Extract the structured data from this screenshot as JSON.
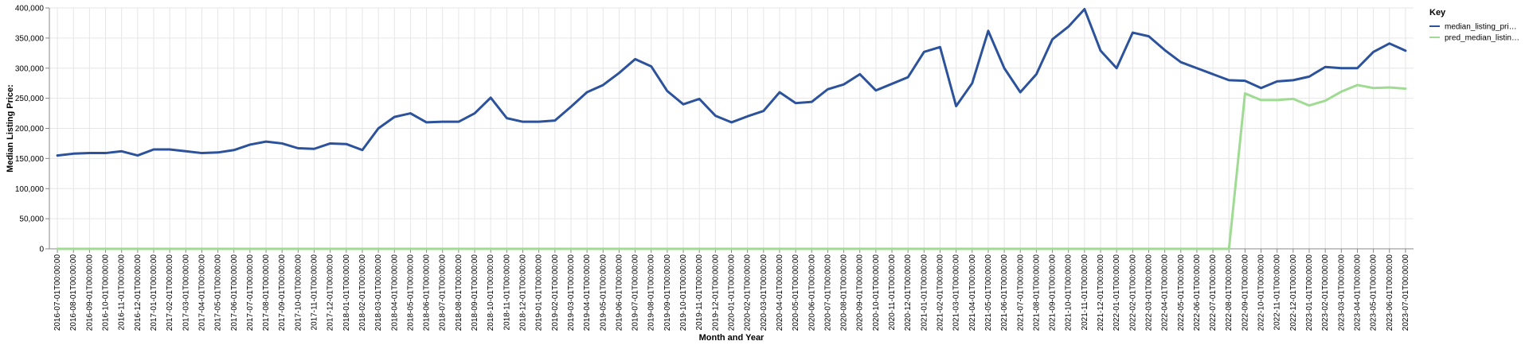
{
  "chart_data": {
    "type": "line",
    "xlabel": "Month and Year",
    "ylabel": "Median Listing Price:",
    "ylim": [
      0,
      400000
    ],
    "y_ticks": [
      "0",
      "50,000",
      "100,000",
      "150,000",
      "200,000",
      "250,000",
      "300,000",
      "350,000",
      "400,000"
    ],
    "grid": true,
    "legend": {
      "title": "Key",
      "placement": "top-right",
      "entries": [
        {
          "label": "median_listing_pri…",
          "color": "#2c529c"
        },
        {
          "label": "pred_median_listin…",
          "color": "#9fdb93"
        }
      ]
    },
    "x": [
      "2016-07-01T00:00:00",
      "2016-08-01T00:00:00",
      "2016-09-01T00:00:00",
      "2016-10-01T00:00:00",
      "2016-11-01T00:00:00",
      "2016-12-01T00:00:00",
      "2017-01-01T00:00:00",
      "2017-02-01T00:00:00",
      "2017-03-01T00:00:00",
      "2017-04-01T00:00:00",
      "2017-05-01T00:00:00",
      "2017-06-01T00:00:00",
      "2017-07-01T00:00:00",
      "2017-08-01T00:00:00",
      "2017-09-01T00:00:00",
      "2017-10-01T00:00:00",
      "2017-11-01T00:00:00",
      "2017-12-01T00:00:00",
      "2018-01-01T00:00:00",
      "2018-02-01T00:00:00",
      "2018-03-01T00:00:00",
      "2018-04-01T00:00:00",
      "2018-05-01T00:00:00",
      "2018-06-01T00:00:00",
      "2018-07-01T00:00:00",
      "2018-08-01T00:00:00",
      "2018-09-01T00:00:00",
      "2018-10-01T00:00:00",
      "2018-11-01T00:00:00",
      "2018-12-01T00:00:00",
      "2019-01-01T00:00:00",
      "2019-02-01T00:00:00",
      "2019-03-01T00:00:00",
      "2019-04-01T00:00:00",
      "2019-05-01T00:00:00",
      "2019-06-01T00:00:00",
      "2019-07-01T00:00:00",
      "2019-08-01T00:00:00",
      "2019-09-01T00:00:00",
      "2019-10-01T00:00:00",
      "2019-11-01T00:00:00",
      "2019-12-01T00:00:00",
      "2020-01-01T00:00:00",
      "2020-02-01T00:00:00",
      "2020-03-01T00:00:00",
      "2020-04-01T00:00:00",
      "2020-05-01T00:00:00",
      "2020-06-01T00:00:00",
      "2020-07-01T00:00:00",
      "2020-08-01T00:00:00",
      "2020-09-01T00:00:00",
      "2020-10-01T00:00:00",
      "2020-11-01T00:00:00",
      "2020-12-01T00:00:00",
      "2021-01-01T00:00:00",
      "2021-02-01T00:00:00",
      "2021-03-01T00:00:00",
      "2021-04-01T00:00:00",
      "2021-05-01T00:00:00",
      "2021-06-01T00:00:00",
      "2021-07-01T00:00:00",
      "2021-08-01T00:00:00",
      "2021-09-01T00:00:00",
      "2021-10-01T00:00:00",
      "2021-11-01T00:00:00",
      "2021-12-01T00:00:00",
      "2022-01-01T00:00:00",
      "2022-02-01T00:00:00",
      "2022-03-01T00:00:00",
      "2022-04-01T00:00:00",
      "2022-05-01T00:00:00",
      "2022-06-01T00:00:00",
      "2022-07-01T00:00:00",
      "2022-08-01T00:00:00",
      "2022-09-01T00:00:00",
      "2022-10-01T00:00:00",
      "2022-11-01T00:00:00",
      "2022-12-01T00:00:00",
      "2023-01-01T00:00:00",
      "2023-02-01T00:00:00",
      "2023-03-01T00:00:00",
      "2023-04-01T00:00:00",
      "2023-05-01T00:00:00",
      "2023-06-01T00:00:00",
      "2023-07-01T00:00:00"
    ],
    "series": [
      {
        "name": "median_listing_pri…",
        "color": "#2c529c",
        "values": [
          155000,
          158000,
          159000,
          159000,
          162000,
          155000,
          165000,
          165000,
          162000,
          159000,
          160000,
          164000,
          173000,
          178000,
          175000,
          167000,
          166000,
          175000,
          174000,
          164000,
          200000,
          219000,
          225000,
          210000,
          211000,
          211000,
          225000,
          251000,
          217000,
          211000,
          211000,
          213000,
          236000,
          260000,
          272000,
          292000,
          315000,
          303000,
          262000,
          240000,
          249000,
          221000,
          210000,
          220000,
          229000,
          260000,
          242000,
          244000,
          265000,
          273000,
          290000,
          263000,
          274000,
          285000,
          327000,
          335000,
          237000,
          275000,
          362000,
          300000,
          260000,
          290000,
          348000,
          369000,
          398000,
          329000,
          300000,
          359000,
          353000,
          330000,
          310000,
          300000,
          290000,
          280000,
          279000,
          267000,
          278000,
          280000,
          286000,
          302000,
          300000,
          300000,
          327000,
          341000,
          329000
        ]
      },
      {
        "name": "pred_median_listin…",
        "color": "#9fdb93",
        "values": [
          0,
          0,
          0,
          0,
          0,
          0,
          0,
          0,
          0,
          0,
          0,
          0,
          0,
          0,
          0,
          0,
          0,
          0,
          0,
          0,
          0,
          0,
          0,
          0,
          0,
          0,
          0,
          0,
          0,
          0,
          0,
          0,
          0,
          0,
          0,
          0,
          0,
          0,
          0,
          0,
          0,
          0,
          0,
          0,
          0,
          0,
          0,
          0,
          0,
          0,
          0,
          0,
          0,
          0,
          0,
          0,
          0,
          0,
          0,
          0,
          0,
          0,
          0,
          0,
          0,
          0,
          0,
          0,
          0,
          0,
          0,
          0,
          0,
          0,
          258000,
          247000,
          247000,
          249000,
          238000,
          246000,
          261000,
          272000,
          267000,
          268000,
          266000
        ]
      }
    ]
  }
}
